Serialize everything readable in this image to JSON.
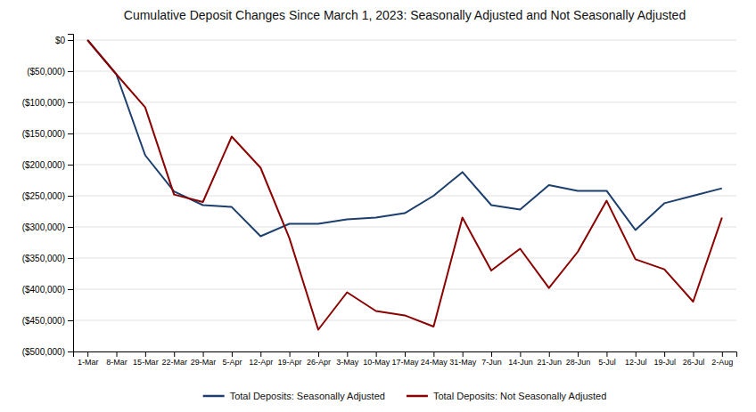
{
  "chart_data": {
    "type": "line",
    "title": "Cumulative Deposit Changes Since March 1, 2023: Seasonally Adjusted and Not Seasonally Adjusted",
    "categories": [
      "1-Mar",
      "8-Mar",
      "15-Mar",
      "22-Mar",
      "29-Mar",
      "5-Apr",
      "12-Apr",
      "19-Apr",
      "26-Apr",
      "3-May",
      "10-May",
      "17-May",
      "24-May",
      "31-May",
      "7-Jun",
      "14-Jun",
      "21-Jun",
      "28-Jun",
      "5-Jul",
      "12-Jul",
      "19-Jul",
      "26-Jul",
      "2-Aug"
    ],
    "series": [
      {
        "name": "Total Deposits: Seasonally Adjusted",
        "color": "#1c3f6e",
        "values": [
          0,
          -55000,
          -185000,
          -243000,
          -265000,
          -268000,
          -315000,
          -295000,
          -295000,
          -288000,
          -285000,
          -278000,
          -250000,
          -212000,
          -265000,
          -272000,
          -233000,
          -242000,
          -242000,
          -305000,
          -262000,
          -250000,
          -238000
        ]
      },
      {
        "name": "Total Deposits: Not Seasonally Adjusted",
        "color": "#8b0000",
        "values": [
          0,
          -55000,
          -108000,
          -248000,
          -260000,
          -155000,
          -205000,
          -318000,
          -465000,
          -405000,
          -435000,
          -442000,
          -460000,
          -285000,
          -370000,
          -335000,
          -398000,
          -340000,
          -258000,
          -352000,
          -368000,
          -420000,
          -285000
        ]
      }
    ],
    "ylim": [
      -500000,
      10000
    ],
    "yticks": [
      {
        "value": 0,
        "label": "$0"
      },
      {
        "value": -50000,
        "label": "($50,000)"
      },
      {
        "value": -100000,
        "label": "($100,000)"
      },
      {
        "value": -150000,
        "label": "($150,000)"
      },
      {
        "value": -200000,
        "label": "($200,000)"
      },
      {
        "value": -250000,
        "label": "($250,000)"
      },
      {
        "value": -300000,
        "label": "($300,000)"
      },
      {
        "value": -350000,
        "label": "($350,000)"
      },
      {
        "value": -400000,
        "label": "($400,000)"
      },
      {
        "value": -450000,
        "label": "($450,000)"
      },
      {
        "value": -500000,
        "label": "($500,000)"
      }
    ],
    "grid": true,
    "legend": "bottom"
  }
}
